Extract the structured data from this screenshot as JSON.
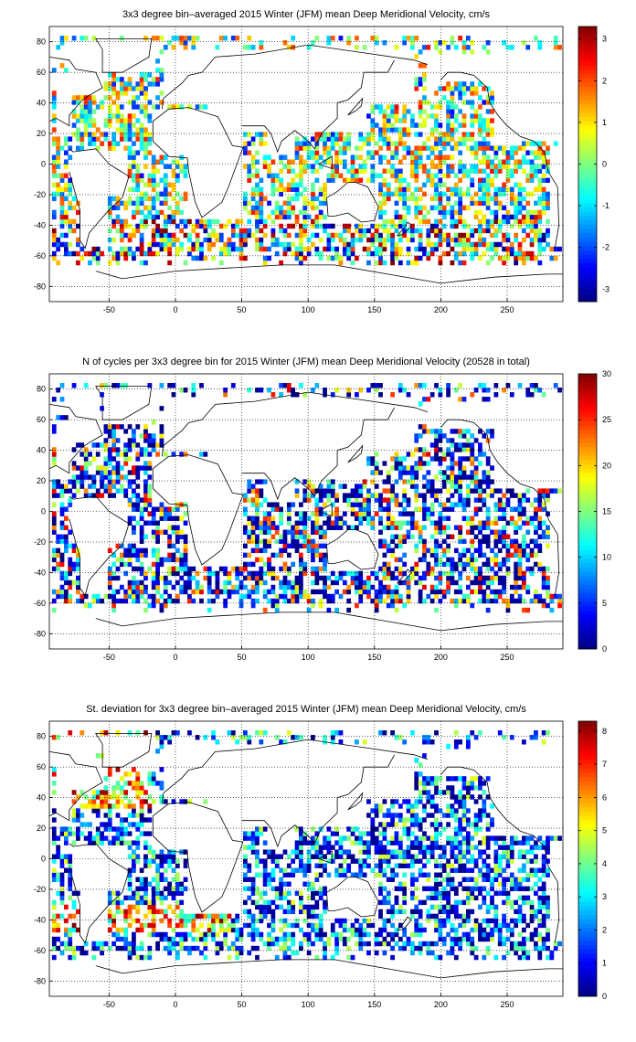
{
  "figure": {
    "background": "#ffffff",
    "colormap": "jet"
  },
  "chart_data": [
    {
      "type": "heatmap",
      "title": "3x3 degree bin–averaged 2015 Winter (JFM) mean Deep Meridional Velocity, cm/s",
      "xlabel": "",
      "ylabel": "",
      "xlim": [
        -95,
        292
      ],
      "ylim": [
        -90,
        90
      ],
      "x_ticks": [
        "-50",
        "0",
        "50",
        "100",
        "150",
        "200",
        "250"
      ],
      "y_ticks": [
        "80",
        "60",
        "40",
        "20",
        "0",
        "-20",
        "-40",
        "-60",
        "-80"
      ],
      "grid": true,
      "bin_size_deg": 3,
      "colorbar": {
        "range": [
          -3.3,
          3.3
        ],
        "ticks": [
          "3",
          "2",
          "1",
          "0",
          "-1",
          "-2",
          "-3"
        ]
      },
      "value_pattern": "Noisy mixture of strong positive and negative values; largest magnitudes in Southern Ocean (~40-65S) and western boundary currents"
    },
    {
      "type": "heatmap",
      "title": "N of cycles per 3x3 degree bin for 2015 Winter (JFM) mean Deep Meridional Velocity (20528 in total)",
      "xlabel": "",
      "ylabel": "",
      "xlim": [
        -95,
        292
      ],
      "ylim": [
        -90,
        90
      ],
      "x_ticks": [
        "-50",
        "0",
        "50",
        "100",
        "150",
        "200",
        "250"
      ],
      "y_ticks": [
        "80",
        "60",
        "40",
        "20",
        "0",
        "-20",
        "-40",
        "-60",
        "-80"
      ],
      "grid": true,
      "bin_size_deg": 3,
      "colorbar": {
        "range": [
          0,
          30
        ],
        "ticks": [
          "30",
          "25",
          "20",
          "15",
          "10",
          "5",
          "0"
        ]
      },
      "value_pattern": "Mostly low counts (0-12), occasional bins up to ~20-30"
    },
    {
      "type": "heatmap",
      "title": "St. deviation for 3x3 degree bin–averaged 2015 Winter (JFM) mean Deep Meridional Velocity, cm/s",
      "xlabel": "",
      "ylabel": "",
      "xlim": [
        -95,
        292
      ],
      "ylim": [
        -90,
        90
      ],
      "x_ticks": [
        "-50",
        "0",
        "50",
        "100",
        "150",
        "200",
        "250"
      ],
      "y_ticks": [
        "80",
        "60",
        "40",
        "20",
        "0",
        "-20",
        "-40",
        "-60",
        "-80"
      ],
      "grid": true,
      "bin_size_deg": 3,
      "colorbar": {
        "range": [
          0,
          8.3
        ],
        "ticks": [
          "8",
          "7",
          "6",
          "5",
          "4",
          "3",
          "2",
          "1",
          "0"
        ]
      },
      "value_pattern": "Mostly low (0-3) in Pacific interior; high values (5-8) in Southern Ocean south of Africa and Argentine basin, North Atlantic"
    }
  ]
}
